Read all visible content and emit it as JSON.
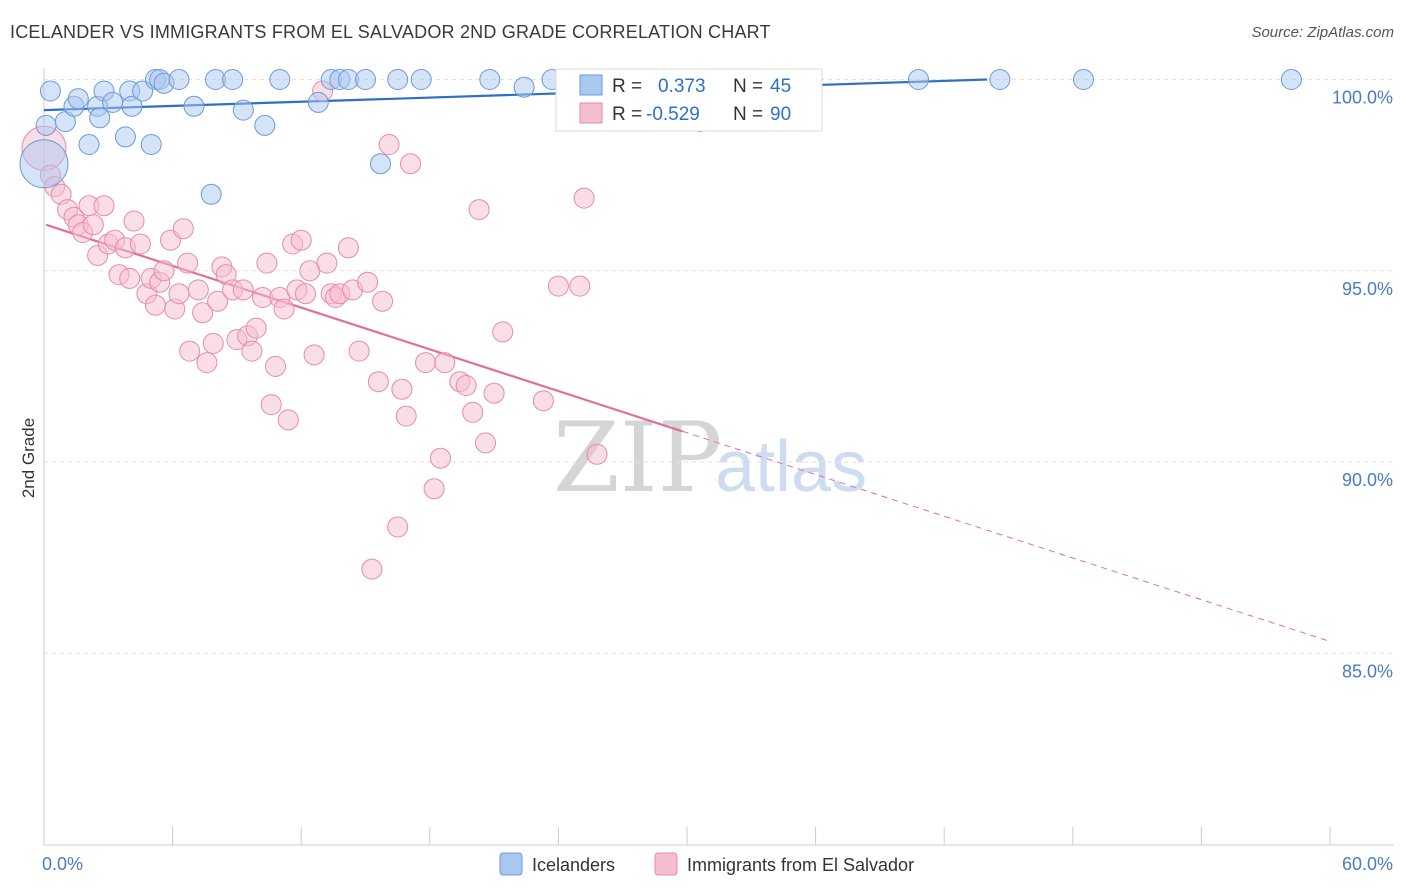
{
  "header": {
    "title": "ICELANDER VS IMMIGRANTS FROM EL SALVADOR 2ND GRADE CORRELATION CHART",
    "source": "Source: ZipAtlas.com"
  },
  "watermark": {
    "zip": "ZIP",
    "atlas": "atlas"
  },
  "colors": {
    "blue_fill": "#a9c8f0",
    "blue_stroke": "#6b9ad8",
    "blue_line": "#2f6fc9",
    "pink_fill": "#f5bdd0",
    "pink_stroke": "#e88aaa",
    "pink_line": "#e0709a",
    "tick_text": "#4a7cc4",
    "grid": "#e2e2e2"
  },
  "legend": {
    "rows": [
      {
        "r_label": "R =",
        "r_value": "0.373",
        "n_label": "N =",
        "n_value": "45"
      },
      {
        "r_label": "R =",
        "r_value": "-0.529",
        "n_label": "N =",
        "n_value": "90"
      }
    ]
  },
  "chart_data": {
    "type": "scatter",
    "title": "ICELANDER VS IMMIGRANTS FROM EL SALVADOR 2ND GRADE CORRELATION CHART",
    "xlabel": "",
    "ylabel": "2nd Grade",
    "xlim": [
      0,
      60
    ],
    "ylim": [
      80.5,
      100.8
    ],
    "x_tick_labels": [
      "0.0%",
      "60.0%"
    ],
    "y_ticks": [
      85,
      90,
      95,
      100
    ],
    "y_tick_labels": [
      "85.0%",
      "90.0%",
      "95.0%",
      "100.0%"
    ],
    "grid": true,
    "legend_placement": "top-center",
    "series": [
      {
        "name": "Icelanders",
        "color": "#a9c8f0",
        "trend": {
          "x": [
            0,
            44
          ],
          "y": [
            99.2,
            100.0
          ],
          "dashed_x": [
            44,
            44
          ]
        },
        "points": [
          [
            0.0,
            97.8,
            24
          ],
          [
            0.1,
            98.8,
            10
          ],
          [
            0.3,
            99.7,
            10
          ],
          [
            1.0,
            98.9,
            10
          ],
          [
            1.4,
            99.3,
            10
          ],
          [
            1.6,
            99.5,
            10
          ],
          [
            2.1,
            98.3,
            10
          ],
          [
            2.5,
            99.3,
            10
          ],
          [
            2.6,
            99.0,
            10
          ],
          [
            2.8,
            99.7,
            10
          ],
          [
            3.2,
            99.4,
            10
          ],
          [
            3.8,
            98.5,
            10
          ],
          [
            4.0,
            99.7,
            10
          ],
          [
            4.1,
            99.3,
            10
          ],
          [
            4.6,
            99.7,
            10
          ],
          [
            5.0,
            98.3,
            10
          ],
          [
            5.2,
            100.0,
            10
          ],
          [
            5.4,
            100.0,
            10
          ],
          [
            5.6,
            99.9,
            10
          ],
          [
            6.3,
            100.0,
            10
          ],
          [
            7.0,
            99.3,
            10
          ],
          [
            7.8,
            97.0,
            10
          ],
          [
            8.0,
            100.0,
            10
          ],
          [
            8.8,
            100.0,
            10
          ],
          [
            9.3,
            99.2,
            10
          ],
          [
            10.3,
            98.8,
            10
          ],
          [
            11.0,
            100.0,
            10
          ],
          [
            12.8,
            99.4,
            10
          ],
          [
            13.4,
            100.0,
            10
          ],
          [
            13.8,
            100.0,
            10
          ],
          [
            14.2,
            100.0,
            10
          ],
          [
            15.0,
            100.0,
            10
          ],
          [
            15.7,
            97.8,
            10
          ],
          [
            16.5,
            100.0,
            10
          ],
          [
            17.6,
            100.0,
            10
          ],
          [
            20.8,
            100.0,
            10
          ],
          [
            22.4,
            99.8,
            10
          ],
          [
            23.7,
            100.0,
            10
          ],
          [
            27.0,
            100.0,
            10
          ],
          [
            30.7,
            100.0,
            10
          ],
          [
            34.5,
            100.0,
            10
          ],
          [
            40.8,
            100.0,
            10
          ],
          [
            44.6,
            100.0,
            10
          ],
          [
            48.5,
            100.0,
            10
          ],
          [
            58.2,
            100.0,
            10
          ]
        ]
      },
      {
        "name": "Immigrants from El Salvador",
        "color": "#f5bdd0",
        "trend": {
          "x": [
            0.1,
            29.8
          ],
          "y": [
            96.2,
            90.8
          ],
          "dashed_x": [
            29.8,
            60.0
          ]
        },
        "points": [
          [
            0.0,
            98.2,
            22
          ],
          [
            0.3,
            97.5,
            10
          ],
          [
            0.5,
            97.2,
            10
          ],
          [
            0.8,
            97.0,
            10
          ],
          [
            1.1,
            96.6,
            10
          ],
          [
            1.4,
            96.4,
            10
          ],
          [
            1.6,
            96.2,
            10
          ],
          [
            1.8,
            96.0,
            10
          ],
          [
            2.1,
            96.7,
            10
          ],
          [
            2.3,
            96.2,
            10
          ],
          [
            2.5,
            95.4,
            10
          ],
          [
            2.8,
            96.7,
            10
          ],
          [
            3.0,
            95.7,
            10
          ],
          [
            3.3,
            95.8,
            10
          ],
          [
            3.5,
            94.9,
            10
          ],
          [
            3.8,
            95.6,
            10
          ],
          [
            4.0,
            94.8,
            10
          ],
          [
            4.2,
            96.3,
            10
          ],
          [
            4.5,
            95.7,
            10
          ],
          [
            4.8,
            94.4,
            10
          ],
          [
            5.0,
            94.8,
            10
          ],
          [
            5.2,
            94.1,
            10
          ],
          [
            5.4,
            94.7,
            10
          ],
          [
            5.6,
            95.0,
            10
          ],
          [
            5.9,
            95.8,
            10
          ],
          [
            6.1,
            94.0,
            10
          ],
          [
            6.3,
            94.4,
            10
          ],
          [
            6.5,
            96.1,
            10
          ],
          [
            6.7,
            95.2,
            10
          ],
          [
            6.8,
            92.9,
            10
          ],
          [
            7.2,
            94.5,
            10
          ],
          [
            7.4,
            93.9,
            10
          ],
          [
            7.6,
            92.6,
            10
          ],
          [
            7.9,
            93.1,
            10
          ],
          [
            8.1,
            94.2,
            10
          ],
          [
            8.3,
            95.1,
            10
          ],
          [
            8.5,
            94.9,
            10
          ],
          [
            8.8,
            94.5,
            10
          ],
          [
            9.0,
            93.2,
            10
          ],
          [
            9.3,
            94.5,
            10
          ],
          [
            9.5,
            93.3,
            10
          ],
          [
            9.7,
            92.9,
            10
          ],
          [
            9.9,
            93.5,
            10
          ],
          [
            10.2,
            94.3,
            10
          ],
          [
            10.4,
            95.2,
            10
          ],
          [
            10.6,
            91.5,
            10
          ],
          [
            10.8,
            92.5,
            10
          ],
          [
            11.0,
            94.3,
            10
          ],
          [
            11.2,
            94.0,
            10
          ],
          [
            11.4,
            91.1,
            10
          ],
          [
            11.6,
            95.7,
            10
          ],
          [
            11.8,
            94.5,
            10
          ],
          [
            12.0,
            95.8,
            10
          ],
          [
            12.2,
            94.4,
            10
          ],
          [
            12.4,
            95.0,
            10
          ],
          [
            12.6,
            92.8,
            10
          ],
          [
            13.0,
            99.7,
            10
          ],
          [
            13.2,
            95.2,
            10
          ],
          [
            13.4,
            94.4,
            10
          ],
          [
            13.6,
            94.3,
            10
          ],
          [
            13.8,
            94.4,
            10
          ],
          [
            14.2,
            95.6,
            10
          ],
          [
            14.4,
            94.5,
            10
          ],
          [
            14.7,
            92.9,
            10
          ],
          [
            15.1,
            94.7,
            10
          ],
          [
            15.3,
            87.2,
            10
          ],
          [
            15.6,
            92.1,
            10
          ],
          [
            15.8,
            94.2,
            10
          ],
          [
            16.1,
            98.3,
            10
          ],
          [
            16.5,
            88.3,
            10
          ],
          [
            16.7,
            91.9,
            10
          ],
          [
            16.9,
            91.2,
            10
          ],
          [
            17.1,
            97.8,
            10
          ],
          [
            17.8,
            92.6,
            10
          ],
          [
            18.2,
            89.3,
            10
          ],
          [
            18.5,
            90.1,
            10
          ],
          [
            18.7,
            92.6,
            10
          ],
          [
            19.4,
            92.1,
            10
          ],
          [
            19.7,
            92.0,
            10
          ],
          [
            20.0,
            91.3,
            10
          ],
          [
            20.3,
            96.6,
            10
          ],
          [
            20.6,
            90.5,
            10
          ],
          [
            21.0,
            91.8,
            10
          ],
          [
            21.4,
            93.4,
            10
          ],
          [
            23.3,
            91.6,
            10
          ],
          [
            24.0,
            94.6,
            10
          ],
          [
            25.2,
            96.9,
            10
          ],
          [
            25.8,
            90.2,
            10
          ],
          [
            30.6,
            98.9,
            10
          ],
          [
            25.0,
            94.6,
            10
          ]
        ]
      }
    ]
  },
  "bottom_legend": {
    "items": [
      {
        "label": "Icelanders",
        "color": "#a9c8f0"
      },
      {
        "label": "Immigrants from El Salvador",
        "color": "#f5bdd0"
      }
    ]
  }
}
